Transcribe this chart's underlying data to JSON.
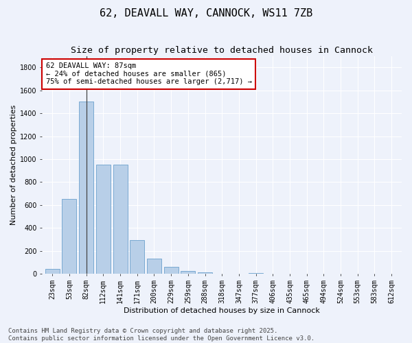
{
  "title": "62, DEAVALL WAY, CANNOCK, WS11 7ZB",
  "subtitle": "Size of property relative to detached houses in Cannock",
  "xlabel": "Distribution of detached houses by size in Cannock",
  "ylabel": "Number of detached properties",
  "categories": [
    "23sqm",
    "53sqm",
    "82sqm",
    "112sqm",
    "141sqm",
    "171sqm",
    "200sqm",
    "229sqm",
    "259sqm",
    "288sqm",
    "318sqm",
    "347sqm",
    "377sqm",
    "406sqm",
    "435sqm",
    "465sqm",
    "494sqm",
    "524sqm",
    "553sqm",
    "583sqm",
    "612sqm"
  ],
  "values": [
    40,
    650,
    1500,
    950,
    950,
    295,
    130,
    60,
    25,
    10,
    0,
    0,
    5,
    0,
    0,
    0,
    0,
    0,
    0,
    0,
    0
  ],
  "bar_color": "#b8cfe8",
  "bar_edge_color": "#6aa0cc",
  "vline_x": 2,
  "vline_color": "#444444",
  "annotation_text": "62 DEAVALL WAY: 87sqm\n← 24% of detached houses are smaller (865)\n75% of semi-detached houses are larger (2,717) →",
  "annotation_box_color": "#ffffff",
  "annotation_box_edgecolor": "#cc0000",
  "ylim": [
    0,
    1900
  ],
  "yticks": [
    0,
    200,
    400,
    600,
    800,
    1000,
    1200,
    1400,
    1600,
    1800
  ],
  "bg_color": "#eef2fb",
  "grid_color": "#ffffff",
  "footer": "Contains HM Land Registry data © Crown copyright and database right 2025.\nContains public sector information licensed under the Open Government Licence v3.0.",
  "title_fontsize": 11,
  "subtitle_fontsize": 9.5,
  "axis_label_fontsize": 8,
  "tick_fontsize": 7,
  "annotation_fontsize": 7.5,
  "footer_fontsize": 6.5
}
